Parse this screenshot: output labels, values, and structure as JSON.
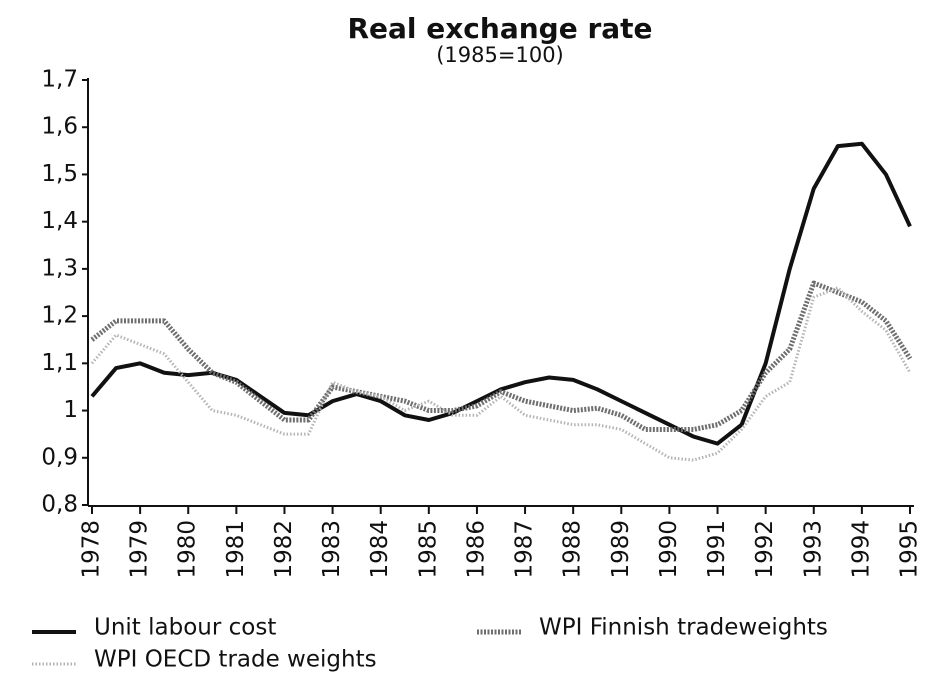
{
  "chart_data": {
    "type": "line",
    "title": "Real exchange rate",
    "subtitle": "(1985=100)",
    "x": [
      1978,
      1978.5,
      1979,
      1979.5,
      1980,
      1980.5,
      1981,
      1981.5,
      1982,
      1982.5,
      1983,
      1983.5,
      1984,
      1984.5,
      1985,
      1985.5,
      1986,
      1986.5,
      1987,
      1987.5,
      1988,
      1988.5,
      1989,
      1989.5,
      1990,
      1990.5,
      1991,
      1991.5,
      1992,
      1992.5,
      1993,
      1993.5,
      1994,
      1994.5,
      1995
    ],
    "series": [
      {
        "name": "Unit labour cost",
        "color": "#111111",
        "values": [
          1.03,
          1.09,
          1.1,
          1.08,
          1.075,
          1.08,
          1.065,
          1.03,
          0.995,
          0.99,
          1.02,
          1.035,
          1.02,
          0.99,
          0.98,
          0.995,
          1.02,
          1.045,
          1.06,
          1.07,
          1.065,
          1.045,
          1.02,
          0.995,
          0.97,
          0.945,
          0.93,
          0.97,
          1.1,
          1.3,
          1.47,
          1.56,
          1.565,
          1.5,
          1.39
        ]
      },
      {
        "name": "WPI Finnish tradeweights",
        "color": "#6e6e6e",
        "values": [
          1.15,
          1.19,
          1.19,
          1.19,
          1.13,
          1.08,
          1.06,
          1.02,
          0.98,
          0.98,
          1.05,
          1.04,
          1.03,
          1.02,
          1.0,
          1.0,
          1.01,
          1.04,
          1.02,
          1.01,
          1.0,
          1.005,
          0.99,
          0.96,
          0.96,
          0.96,
          0.97,
          1.0,
          1.08,
          1.13,
          1.27,
          1.25,
          1.23,
          1.19,
          1.11
        ]
      },
      {
        "name": "WPI OECD trade weights",
        "color": "#b4b4b4",
        "values": [
          1.1,
          1.16,
          1.14,
          1.12,
          1.06,
          1.0,
          0.99,
          0.97,
          0.95,
          0.95,
          1.06,
          1.04,
          1.03,
          1.0,
          1.02,
          0.99,
          0.99,
          1.03,
          0.99,
          0.98,
          0.97,
          0.97,
          0.96,
          0.93,
          0.9,
          0.895,
          0.91,
          0.96,
          1.03,
          1.06,
          1.24,
          1.26,
          1.21,
          1.17,
          1.08
        ]
      }
    ],
    "xlim": [
      1978,
      1995
    ],
    "xticks": [
      1978,
      1979,
      1980,
      1981,
      1982,
      1983,
      1984,
      1985,
      1986,
      1987,
      1988,
      1989,
      1990,
      1991,
      1992,
      1993,
      1994,
      1995
    ],
    "ylim": [
      0.8,
      1.7
    ],
    "yticks": [
      {
        "value": 0.8,
        "label": "0,8"
      },
      {
        "value": 0.9,
        "label": "0,9"
      },
      1,
      {
        "value": 1.1,
        "label": "1,1"
      },
      {
        "value": 1.2,
        "label": "1,2"
      },
      {
        "value": 1.3,
        "label": "1,3"
      },
      {
        "value": 1.4,
        "label": "1,4"
      },
      {
        "value": 1.5,
        "label": "1,5"
      },
      {
        "value": 1.6,
        "label": "1,6"
      },
      {
        "value": 1.7,
        "label": "1,7"
      }
    ],
    "grid": false
  }
}
